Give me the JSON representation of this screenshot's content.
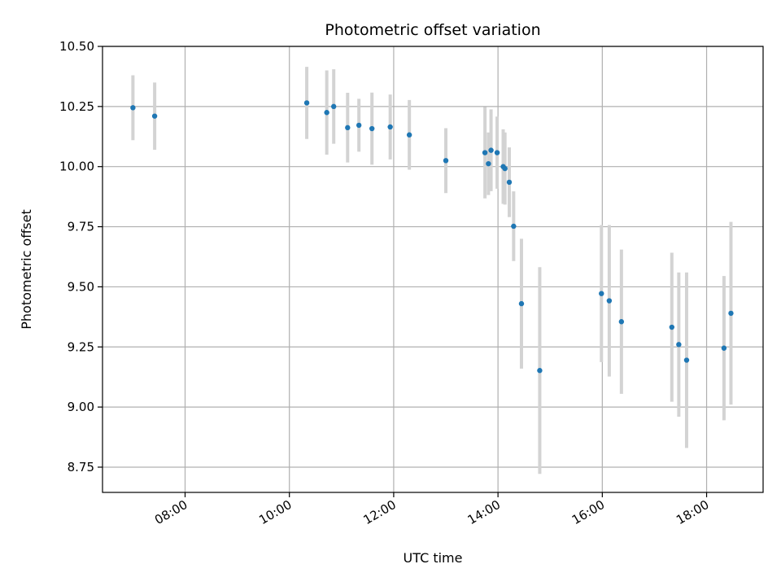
{
  "chart_data": {
    "type": "scatter",
    "title": "Photometric offset variation",
    "xlabel": "UTC time",
    "ylabel": "Photometric offset",
    "x_unit": "UTC time (HH:MM)",
    "xlim": [
      "06:25",
      "19:05"
    ],
    "ylim": [
      8.645,
      10.5
    ],
    "x_ticks": [
      "08:00",
      "10:00",
      "12:00",
      "14:00",
      "16:00",
      "18:00"
    ],
    "y_ticks": [
      8.75,
      9.0,
      9.25,
      9.5,
      9.75,
      10.0,
      10.25,
      10.5
    ],
    "y_tick_labels": [
      "8.75",
      "9.00",
      "9.25",
      "9.50",
      "9.75",
      "10.00",
      "10.25",
      "10.50"
    ],
    "grid": true,
    "marker_color": "#1f77b4",
    "errorbar_color": "#d3d3d3",
    "points": [
      {
        "x": "07:00",
        "y": 10.245,
        "err": 0.135
      },
      {
        "x": "07:25",
        "y": 10.21,
        "err": 0.14
      },
      {
        "x": "10:20",
        "y": 10.265,
        "err": 0.15
      },
      {
        "x": "10:43",
        "y": 10.225,
        "err": 0.175
      },
      {
        "x": "10:51",
        "y": 10.25,
        "err": 0.155
      },
      {
        "x": "11:07",
        "y": 10.162,
        "err": 0.145
      },
      {
        "x": "11:20",
        "y": 10.172,
        "err": 0.11
      },
      {
        "x": "11:35",
        "y": 10.158,
        "err": 0.15
      },
      {
        "x": "11:56",
        "y": 10.165,
        "err": 0.135
      },
      {
        "x": "12:18",
        "y": 10.132,
        "err": 0.145
      },
      {
        "x": "13:00",
        "y": 10.025,
        "err": 0.135
      },
      {
        "x": "13:45",
        "y": 10.058,
        "err": 0.19
      },
      {
        "x": "13:49",
        "y": 10.012,
        "err": 0.13
      },
      {
        "x": "13:52",
        "y": 10.068,
        "err": 0.17
      },
      {
        "x": "13:59",
        "y": 10.058,
        "err": 0.15
      },
      {
        "x": "14:06",
        "y": 10.0,
        "err": 0.155
      },
      {
        "x": "14:08",
        "y": 9.992,
        "err": 0.15
      },
      {
        "x": "14:13",
        "y": 9.935,
        "err": 0.145
      },
      {
        "x": "14:18",
        "y": 9.752,
        "err": 0.145
      },
      {
        "x": "14:27",
        "y": 9.43,
        "err": 0.27
      },
      {
        "x": "14:48",
        "y": 9.152,
        "err": 0.43
      },
      {
        "x": "15:59",
        "y": 9.472,
        "err": 0.285
      },
      {
        "x": "16:08",
        "y": 9.442,
        "err": 0.315
      },
      {
        "x": "16:22",
        "y": 9.355,
        "err": 0.3
      },
      {
        "x": "17:20",
        "y": 9.332,
        "err": 0.31
      },
      {
        "x": "17:28",
        "y": 9.26,
        "err": 0.3
      },
      {
        "x": "17:37",
        "y": 9.195,
        "err": 0.365
      },
      {
        "x": "18:20",
        "y": 9.245,
        "err": 0.3
      },
      {
        "x": "18:28",
        "y": 9.39,
        "err": 0.38
      }
    ]
  }
}
